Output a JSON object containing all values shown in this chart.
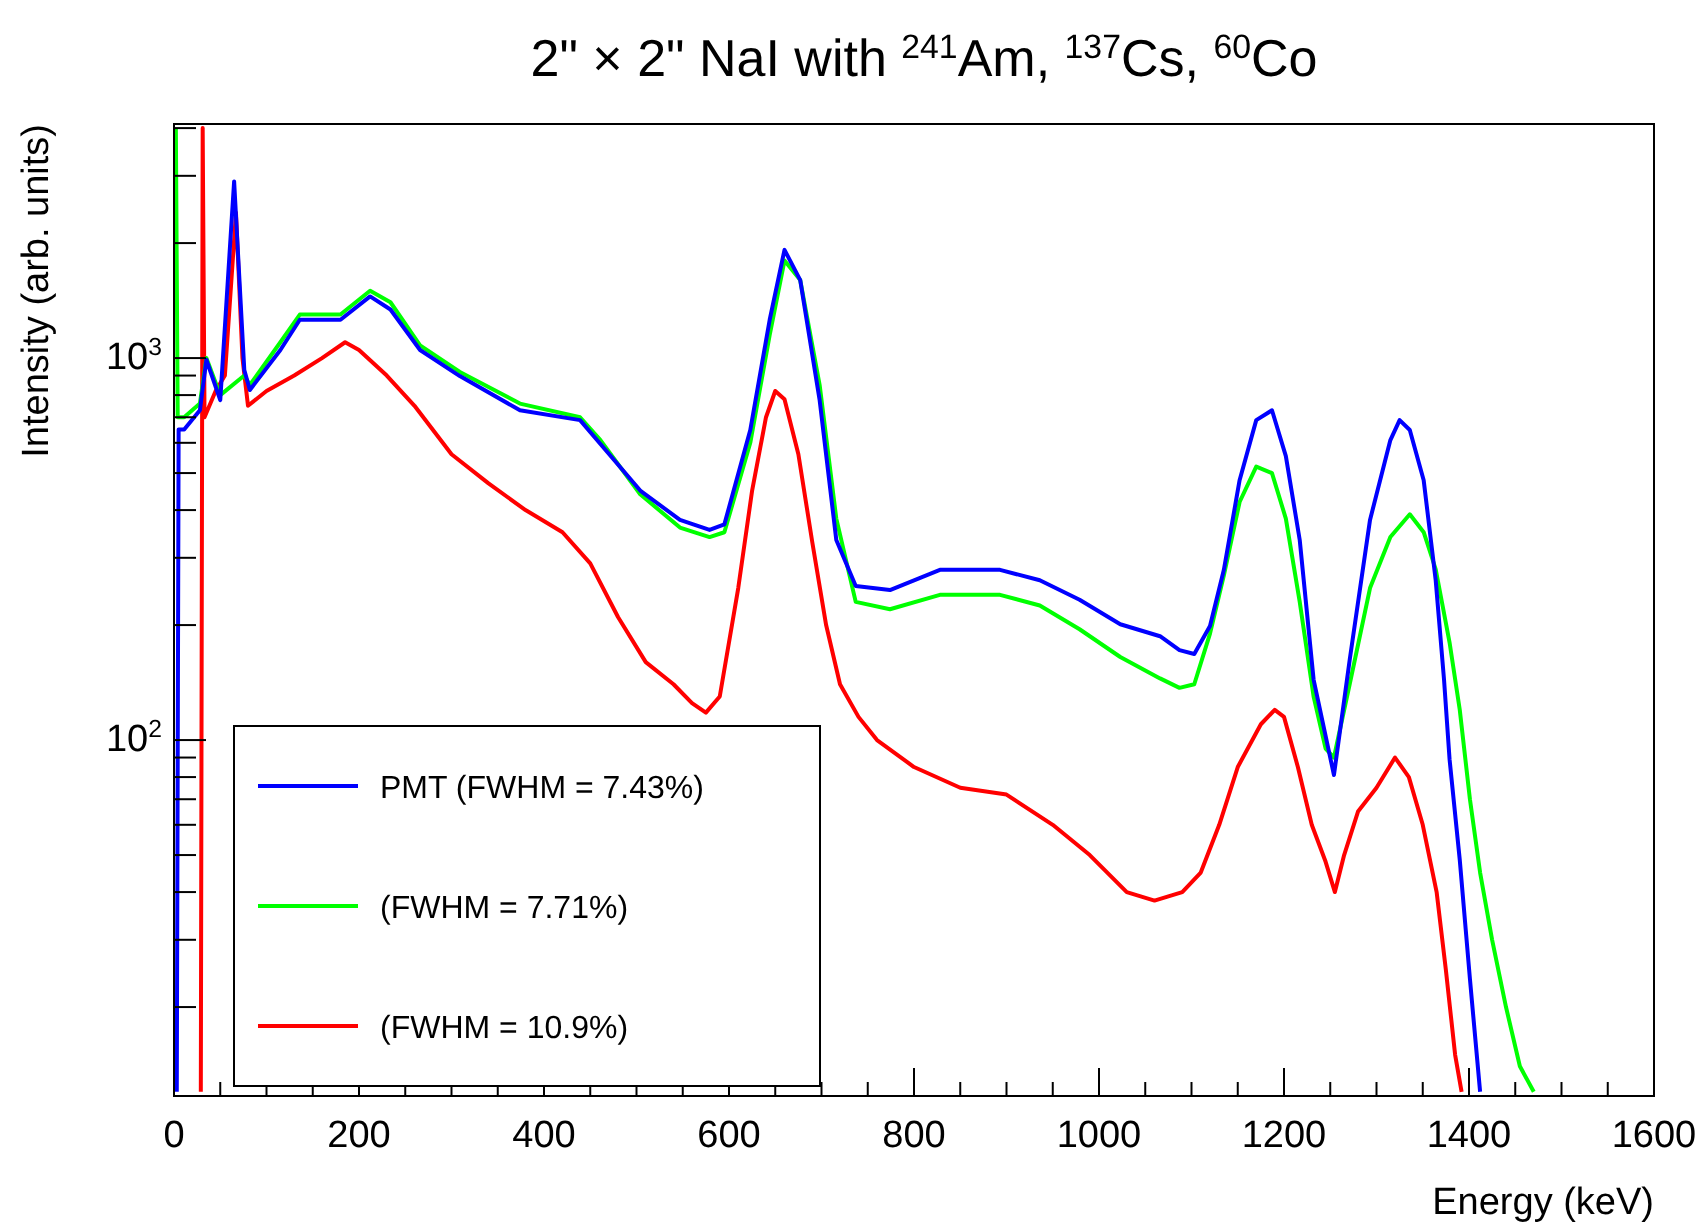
{
  "chart_data": {
    "type": "line",
    "title": "2\" × 2\" NaI with $^{241}$Am, $^{137}$Cs, $^{60}$Co",
    "xlabel": "Energy (keV)",
    "ylabel": "Intensity (arb. units)",
    "log": "y",
    "grid": false,
    "legend": "bottom left",
    "marker": "none",
    "line_style": "solid",
    "xlim": [
      0,
      1600
    ],
    "ylim": [
      11.7,
      4100
    ],
    "xticks": [
      0,
      {
        "value": 50,
        "label": null
      },
      {
        "value": 100,
        "label": null
      },
      {
        "value": 150,
        "label": null
      },
      200,
      {
        "value": 250,
        "label": null
      },
      {
        "value": 300,
        "label": null
      },
      {
        "value": 350,
        "label": null
      },
      400,
      {
        "value": 450,
        "label": null
      },
      {
        "value": 500,
        "label": null
      },
      {
        "value": 550,
        "label": null
      },
      600,
      {
        "value": 650,
        "label": null
      },
      {
        "value": 700,
        "label": null
      },
      {
        "value": 750,
        "label": null
      },
      800,
      {
        "value": 850,
        "label": null
      },
      {
        "value": 900,
        "label": null
      },
      {
        "value": 950,
        "label": null
      },
      1000,
      {
        "value": 1050,
        "label": null
      },
      {
        "value": 1100,
        "label": null
      },
      {
        "value": 1150,
        "label": null
      },
      1200,
      {
        "value": 1250,
        "label": null
      },
      {
        "value": 1300,
        "label": null
      },
      {
        "value": 1350,
        "label": null
      },
      1400,
      {
        "value": 1450,
        "label": null
      },
      {
        "value": 1500,
        "label": null
      },
      {
        "value": 1550,
        "label": null
      },
      1600
    ],
    "yticks": [
      {
        "value": 20,
        "label": null
      },
      {
        "value": 30,
        "label": null
      },
      {
        "value": 40,
        "label": null
      },
      {
        "value": 50,
        "label": null
      },
      {
        "value": 60,
        "label": null
      },
      {
        "value": 70,
        "label": null
      },
      {
        "value": 80,
        "label": null
      },
      {
        "value": 90,
        "label": null
      },
      {
        "value": 100,
        "label": "10$^{2}$"
      },
      {
        "value": 200,
        "label": null
      },
      {
        "value": 300,
        "label": null
      },
      {
        "value": 400,
        "label": null
      },
      {
        "value": 500,
        "label": null
      },
      {
        "value": 600,
        "label": null
      },
      {
        "value": 700,
        "label": null
      },
      {
        "value": 800,
        "label": null
      },
      {
        "value": 900,
        "label": null
      },
      {
        "value": 1000,
        "label": "10$^{3}$"
      },
      {
        "value": 2000,
        "label": null
      },
      {
        "value": 3000,
        "label": null
      },
      {
        "value": 4000,
        "label": null
      }
    ],
    "series": [
      {
        "name": "PMT (FWHM = 7.43%)",
        "color": "#0000ff",
        "x": [
          3,
          5,
          11,
          28,
          35,
          50,
          65,
          76,
          82,
          115,
          136,
          180,
          212,
          234,
          266,
          309,
          374,
          439,
          461,
          504,
          547,
          579,
          595,
          623,
          644,
          660,
          677,
          698,
          716,
          737,
          774,
          828,
          893,
          936,
          979,
          1023,
          1066,
          1087,
          1103,
          1120,
          1135,
          1152,
          1170,
          1187,
          1202,
          1217,
          1232,
          1254,
          1271,
          1293,
          1315,
          1325,
          1336,
          1351,
          1364,
          1373,
          1379,
          1390,
          1401,
          1412
        ],
        "values": [
          12,
          650,
          650,
          730,
          990,
          776,
          2900,
          930,
          825,
          1050,
          1260,
          1260,
          1450,
          1340,
          1050,
          897,
          730,
          688,
          596,
          450,
          377,
          355,
          367,
          648,
          1260,
          1920,
          1600,
          776,
          334,
          253,
          247,
          279,
          279,
          262,
          233,
          201,
          187,
          172,
          168,
          199,
          279,
          479,
          688,
          730,
          554,
          334,
          144,
          81,
          162,
          377,
          610,
          688,
          648,
          479,
          262,
          144,
          89,
          48.6,
          23.7,
          12
        ]
      },
      {
        "name": "(FWHM = 7.71%)",
        "color": "#00ff00",
        "x": [
          2,
          4,
          11,
          28,
          35,
          50,
          65,
          76,
          82,
          115,
          136,
          180,
          212,
          234,
          266,
          309,
          374,
          439,
          461,
          504,
          547,
          579,
          595,
          623,
          644,
          660,
          677,
          698,
          716,
          737,
          774,
          828,
          893,
          936,
          979,
          1023,
          1066,
          1087,
          1103,
          1120,
          1135,
          1152,
          1170,
          1187,
          1202,
          1217,
          1232,
          1245,
          1254,
          1271,
          1293,
          1315,
          1336,
          1351,
          1364,
          1379,
          1390,
          1401,
          1412,
          1425,
          1440,
          1455,
          1470
        ],
        "values": [
          4000,
          700,
          700,
          760,
          1000,
          800,
          null,
          900,
          850,
          1100,
          1300,
          1300,
          1500,
          1400,
          1080,
          920,
          760,
          700,
          610,
          440,
          360,
          340,
          350,
          600,
          1150,
          1800,
          1600,
          850,
          380,
          230,
          220,
          240,
          240,
          225,
          195,
          165,
          145,
          137,
          140,
          190,
          270,
          420,
          520,
          500,
          380,
          230,
          130,
          95,
          90,
          140,
          250,
          340,
          390,
          350,
          280,
          180,
          120,
          70,
          45,
          30,
          20,
          14,
          12
        ]
      },
      {
        "name": "(FWHM = 10.9%)",
        "color": "#ff0000",
        "x": [
          29,
          31,
          33,
          45,
          55,
          67,
          74,
          80,
          100,
          130,
          160,
          185,
          200,
          230,
          260,
          300,
          340,
          380,
          420,
          450,
          480,
          510,
          540,
          560,
          575,
          590,
          610,
          625,
          640,
          650,
          660,
          675,
          690,
          705,
          720,
          740,
          760,
          800,
          850,
          900,
          950,
          990,
          1030,
          1060,
          1090,
          1110,
          1130,
          1150,
          1175,
          1190,
          1200,
          1215,
          1230,
          1245,
          1255,
          1265,
          1280,
          1300,
          1320,
          1335,
          1350,
          1365,
          1375,
          1385,
          1392
        ],
        "values": [
          12,
          4000,
          700,
          820,
          900,
          2400,
          1000,
          750,
          820,
          900,
          1000,
          1100,
          1050,
          900,
          750,
          560,
          470,
          400,
          350,
          290,
          210,
          160,
          140,
          125,
          118,
          130,
          250,
          450,
          700,
          820,
          780,
          560,
          330,
          200,
          140,
          115,
          100,
          85,
          75,
          72,
          60,
          50,
          40,
          38,
          40,
          45,
          60,
          85,
          110,
          120,
          115,
          85,
          60,
          48,
          40,
          50,
          65,
          75,
          90,
          80,
          60,
          40,
          25,
          15,
          12
        ]
      }
    ]
  }
}
